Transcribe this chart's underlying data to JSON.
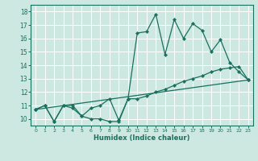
{
  "xlabel": "Humidex (Indice chaleur)",
  "xlim": [
    -0.5,
    23.5
  ],
  "ylim": [
    9.5,
    18.5
  ],
  "yticks": [
    10,
    11,
    12,
    13,
    14,
    15,
    16,
    17,
    18
  ],
  "xticks": [
    0,
    1,
    2,
    3,
    4,
    5,
    6,
    7,
    8,
    9,
    10,
    11,
    12,
    13,
    14,
    15,
    16,
    17,
    18,
    19,
    20,
    21,
    22,
    23
  ],
  "bg_color": "#cce8e0",
  "grid_color": "#b0d8ce",
  "line_color": "#1a7060",
  "line1_x": [
    0,
    1,
    2,
    3,
    4,
    5,
    6,
    7,
    8,
    9,
    10,
    11,
    12,
    13,
    14,
    15,
    16,
    17,
    18,
    19,
    20,
    21,
    22,
    23
  ],
  "line1_y": [
    10.7,
    11.0,
    9.8,
    11.0,
    11.0,
    10.2,
    10.0,
    10.0,
    9.8,
    9.8,
    11.5,
    16.4,
    16.5,
    17.8,
    14.8,
    17.4,
    16.0,
    17.1,
    16.6,
    15.0,
    15.9,
    14.2,
    13.5,
    12.9
  ],
  "line2_x": [
    0,
    1,
    2,
    3,
    4,
    5,
    6,
    7,
    8,
    9,
    10,
    11,
    12,
    13,
    14,
    15,
    16,
    17,
    18,
    19,
    20,
    21,
    22,
    23
  ],
  "line2_y": [
    10.7,
    11.0,
    9.8,
    11.0,
    10.8,
    10.2,
    10.8,
    11.0,
    11.5,
    9.9,
    11.5,
    11.5,
    11.7,
    12.0,
    12.2,
    12.5,
    12.8,
    13.0,
    13.2,
    13.5,
    13.7,
    13.8,
    13.9,
    12.9
  ],
  "line3_x": [
    0,
    23
  ],
  "line3_y": [
    10.7,
    12.9
  ]
}
